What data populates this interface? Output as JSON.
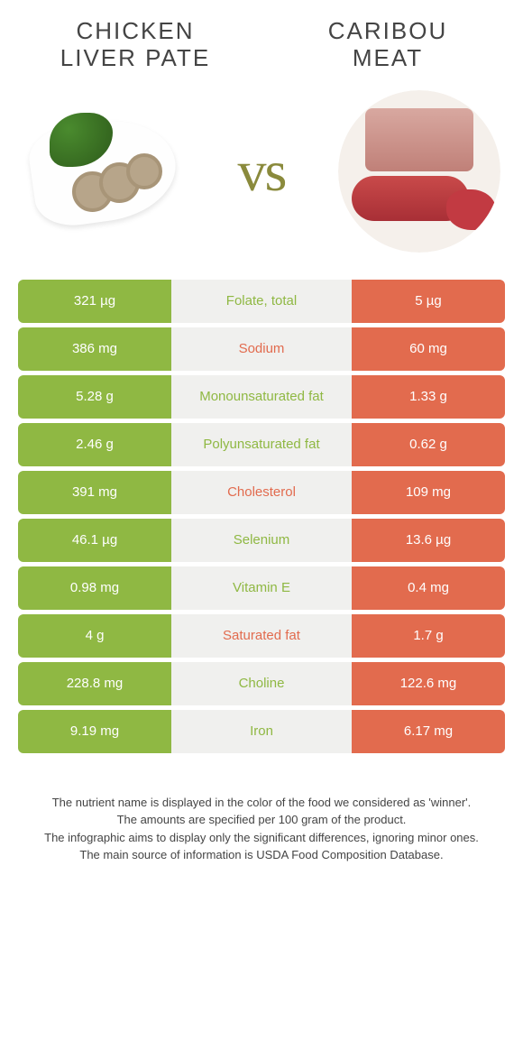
{
  "colors": {
    "left_food": "#8fb843",
    "right_food": "#e26b4e",
    "mid_bg": "#f0f0ee",
    "vs": "#8a8a3c",
    "title": "#444444"
  },
  "food_left": {
    "title_line1": "CHICKEN",
    "title_line2": "LIVER PATE"
  },
  "food_right": {
    "title_line1": "CARIBOU",
    "title_line2": "MEAT"
  },
  "vs_label": "vs",
  "nutrients": [
    {
      "left": "321 µg",
      "name": "Folate, total",
      "right": "5 µg",
      "winner": "left"
    },
    {
      "left": "386 mg",
      "name": "Sodium",
      "right": "60 mg",
      "winner": "right"
    },
    {
      "left": "5.28 g",
      "name": "Monounsaturated fat",
      "right": "1.33 g",
      "winner": "left"
    },
    {
      "left": "2.46 g",
      "name": "Polyunsaturated fat",
      "right": "0.62 g",
      "winner": "left"
    },
    {
      "left": "391 mg",
      "name": "Cholesterol",
      "right": "109 mg",
      "winner": "right"
    },
    {
      "left": "46.1 µg",
      "name": "Selenium",
      "right": "13.6 µg",
      "winner": "left"
    },
    {
      "left": "0.98 mg",
      "name": "Vitamin E",
      "right": "0.4 mg",
      "winner": "left"
    },
    {
      "left": "4 g",
      "name": "Saturated fat",
      "right": "1.7 g",
      "winner": "right"
    },
    {
      "left": "228.8 mg",
      "name": "Choline",
      "right": "122.6 mg",
      "winner": "left"
    },
    {
      "left": "9.19 mg",
      "name": "Iron",
      "right": "6.17 mg",
      "winner": "left"
    }
  ],
  "notes": [
    "The nutrient name is displayed in the color of the food we considered as 'winner'.",
    "The amounts are specified per 100 gram of the product.",
    "The infographic aims to display only the significant differences, ignoring minor ones.",
    "The main source of information is USDA Food Composition Database."
  ]
}
